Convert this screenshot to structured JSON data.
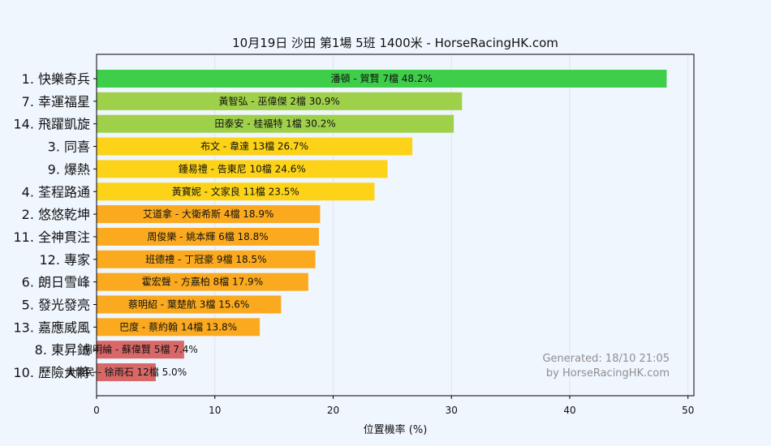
{
  "chart_data": {
    "type": "bar",
    "orientation": "horizontal",
    "title": "10月19日  沙田  第1場  5班  1400米 - HorseRacingHK.com",
    "xlabel": "位置機率 (%)",
    "ylabel": "",
    "xlim": [
      0,
      50.5
    ],
    "xticks": [
      0,
      10,
      20,
      30,
      40,
      50
    ],
    "grid": true,
    "categories": [
      "1. 快樂奇兵",
      "7. 幸運福星",
      "14. 飛躍凱旋",
      "3. 同喜",
      "9. 爆熱",
      "4. 荃程路通",
      "2. 悠悠乾坤",
      "11. 全神貫注",
      "12. 專家",
      "6. 朗日雪峰",
      "5. 發光發亮",
      "13. 嘉應威風",
      "8. 東昇鉞",
      "10. 歷險大將"
    ],
    "values": [
      48.2,
      30.9,
      30.2,
      26.7,
      24.6,
      23.5,
      18.9,
      18.8,
      18.5,
      17.9,
      15.6,
      13.8,
      7.4,
      5.0
    ],
    "bar_labels": [
      "潘頓 - 賀賢 7檔  48.2%",
      "黃智弘 - 巫偉傑 2檔  30.9%",
      "田泰安 - 桂福特 1檔  30.2%",
      "布文 - 韋達 13檔  26.7%",
      "鍾易禮 - 告東尼 10檔  24.6%",
      "黃寶妮 - 文家良 11檔  23.5%",
      "艾道拿 - 大衛希斯 4檔  18.9%",
      "周俊樂 - 姚本輝 6檔  18.8%",
      "班德禮 - 丁冠豪 9檔  18.5%",
      "霍宏聲 - 方嘉柏 8檔  17.9%",
      "蔡明紹 - 葉楚航 3檔  15.6%",
      "巴度 - 蔡約翰 14檔  13.8%",
      "楊明綸 - 蘇偉賢 5檔  7.4%",
      "奧爾民 - 徐雨石 12檔  5.0%"
    ],
    "colors": [
      "#3fce4a",
      "#9fd04a",
      "#9fd04a",
      "#fcd318",
      "#fcd318",
      "#fcd318",
      "#fbaa1f",
      "#fbaa1f",
      "#fbaa1f",
      "#fbaa1f",
      "#fbaa1f",
      "#fbaa1f",
      "#d86868",
      "#d86868"
    ],
    "annotation": [
      "Generated: 18/10 21:05",
      "by HorseRacingHK.com"
    ]
  }
}
